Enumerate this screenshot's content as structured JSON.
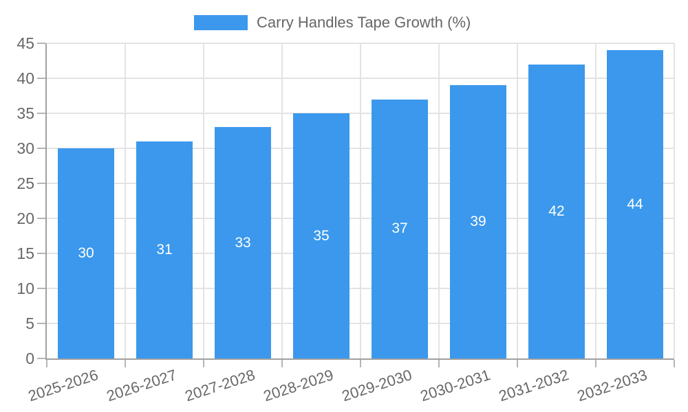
{
  "legend": {
    "label": "Carry Handles Tape Growth (%)"
  },
  "colors": {
    "bar": "#3B98EC",
    "bar_value_text": "#ffffff",
    "tick_text": "#686868",
    "legend_text": "#666666",
    "grid": "#e3e3e3",
    "axis": "#a0a0a0",
    "tick_mark": "#b5b5b5",
    "background": "#ffffff"
  },
  "chart_data": {
    "type": "bar",
    "title": "Carry Handles Tape Growth (%)",
    "categories": [
      "2025-2026",
      "2026-2027",
      "2027-2028",
      "2028-2029",
      "2029-2030",
      "2030-2031",
      "2031-2032",
      "2032-2033"
    ],
    "values": [
      30,
      31,
      33,
      35,
      37,
      39,
      42,
      44
    ],
    "xlabel": "",
    "ylabel": "",
    "ylim": [
      0,
      45
    ],
    "ytick_step": 5,
    "ytick_labels": [
      "0",
      "5",
      "10",
      "15",
      "20",
      "25",
      "30",
      "35",
      "40",
      "45"
    ],
    "grid": true,
    "legend_position": "top",
    "value_labels_position": "inside-center",
    "x_label_rotation_deg": -18
  }
}
